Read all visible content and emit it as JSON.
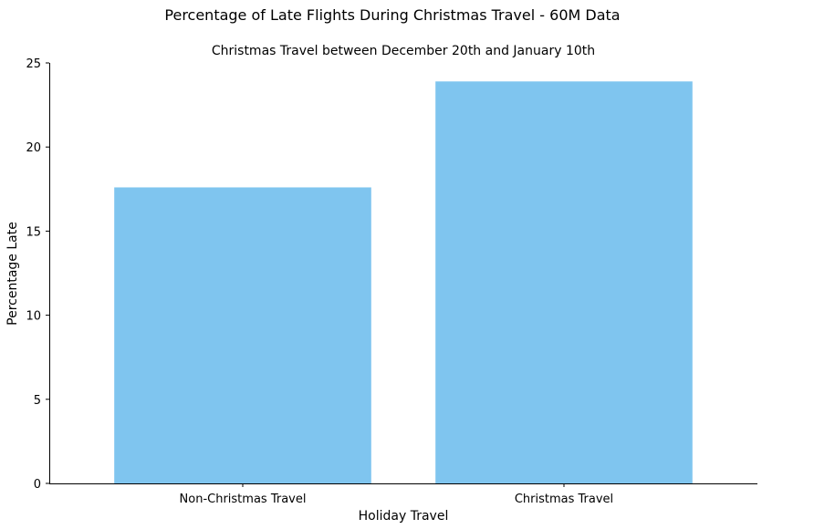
{
  "chart_data": {
    "type": "bar",
    "title": "Percentage of Late Flights During Christmas Travel - 60M Data",
    "subtitle": "Christmas Travel between December 20th and January 10th",
    "xlabel": "Holiday Travel",
    "ylabel": "Percentage Late",
    "categories": [
      "Non-Christmas Travel",
      "Christmas Travel"
    ],
    "values": [
      17.6,
      23.9
    ],
    "ylim": [
      0,
      25
    ],
    "yticks": [
      0,
      5,
      10,
      15,
      20,
      25
    ],
    "bar_color": "#7fc5ef",
    "grid": false,
    "legend": "none"
  }
}
